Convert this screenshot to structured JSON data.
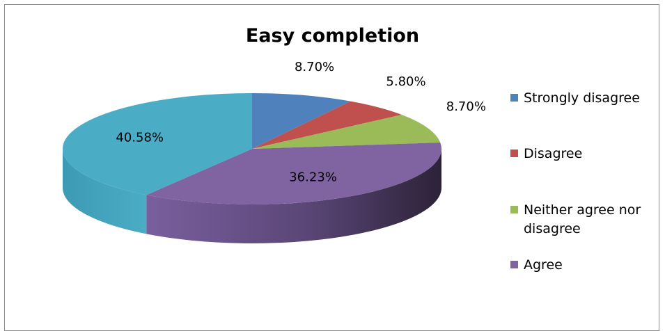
{
  "chart_data": {
    "type": "pie",
    "title": "Easy completion",
    "legend_position": "right",
    "slices": [
      {
        "name": "Strongly disagree",
        "value": 8.7,
        "label": "8.70%",
        "color": "#4f81bd",
        "legend": true
      },
      {
        "name": "Disagree",
        "value": 5.8,
        "label": "5.80%",
        "color": "#c0504d",
        "legend": true
      },
      {
        "name": "Neither agree nor disagree",
        "value": 8.7,
        "label": "8.70%",
        "color": "#9bbb59",
        "legend": true
      },
      {
        "name": "Agree",
        "value": 36.23,
        "label": "36.23%",
        "color": "#8064a2",
        "legend": true
      },
      {
        "name": "",
        "value": 40.58,
        "label": "40.58%",
        "color": "#4bacc6",
        "legend": false
      }
    ]
  }
}
